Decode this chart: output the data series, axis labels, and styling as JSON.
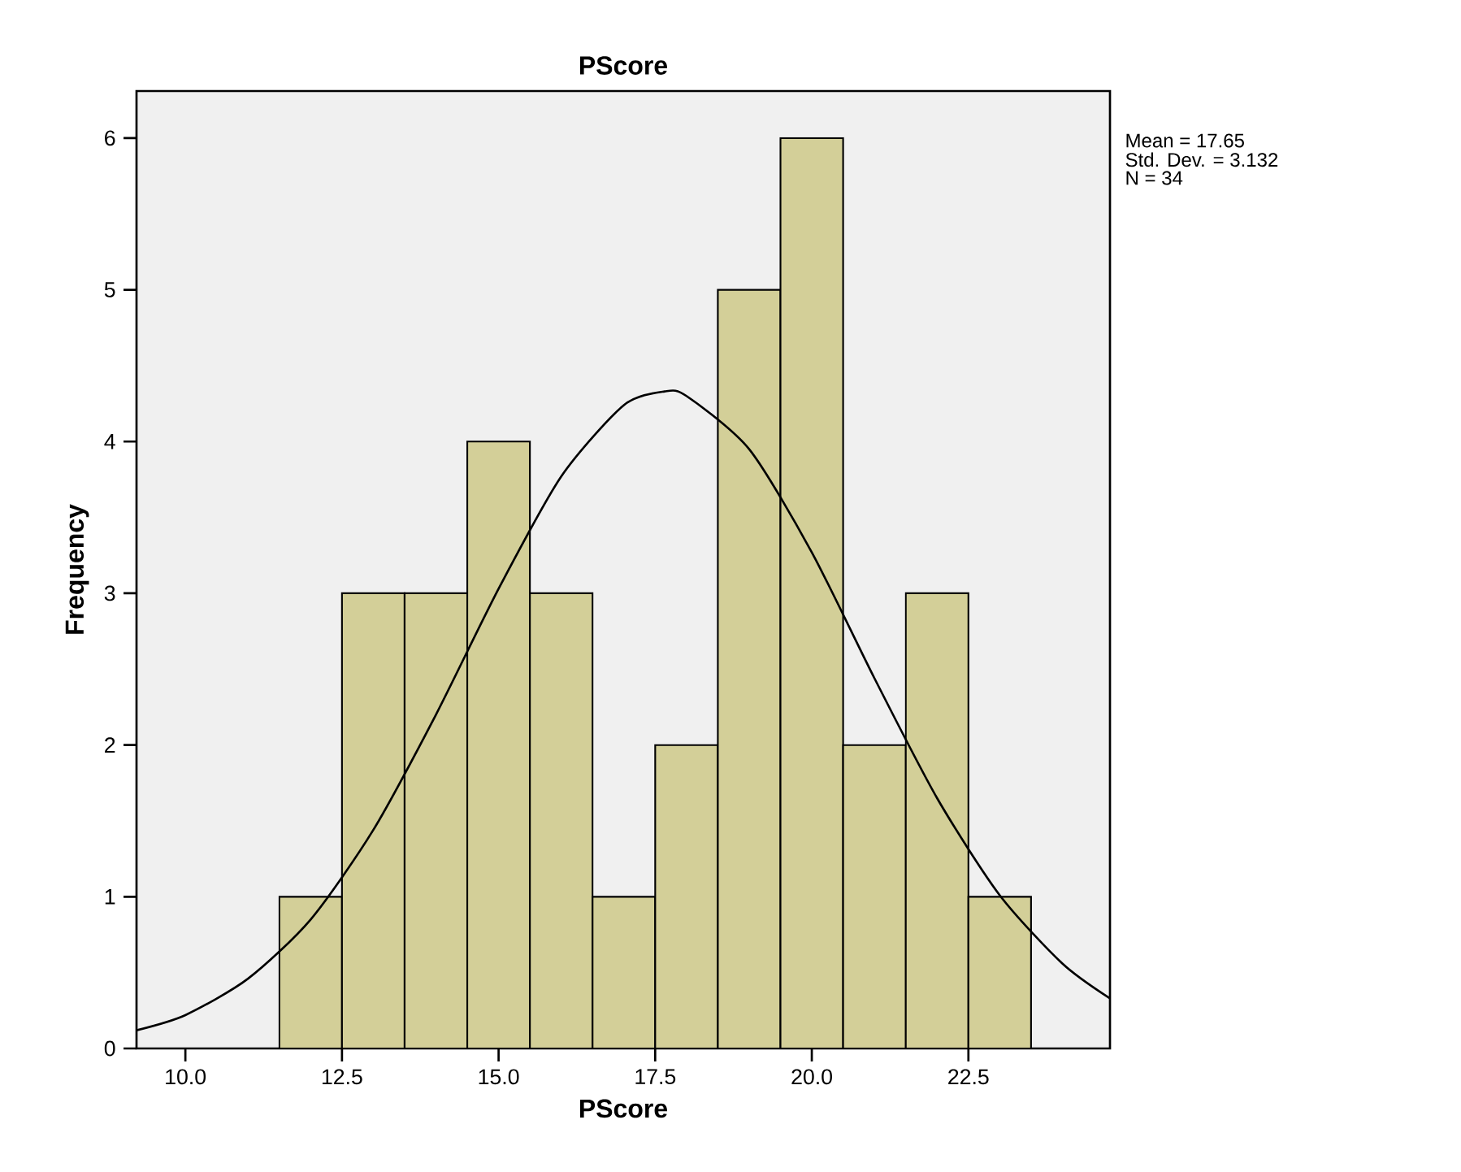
{
  "chart_data": {
    "type": "histogram",
    "title": "PScore",
    "xlabel": "PScore",
    "ylabel": "Frequency",
    "bins": [
      11.5,
      12.5,
      13.5,
      14.5,
      15.5,
      16.5,
      17.5,
      18.5,
      19.5,
      20.5,
      21.5,
      22.5,
      23.5
    ],
    "values": [
      1,
      3,
      3,
      4,
      3,
      1,
      2,
      5,
      6,
      2,
      3,
      1
    ],
    "color": "#d3cf98",
    "series": [
      {
        "type": "line",
        "color": "#000000",
        "x": [
          9.22,
          10,
          11,
          12,
          13,
          14,
          15,
          16,
          17,
          17.65,
          18,
          19,
          20,
          21,
          22,
          23,
          24,
          24.76
        ],
        "values": [
          0.12,
          0.22,
          0.46,
          0.85,
          1.44,
          2.2,
          3.03,
          3.77,
          4.24,
          4.33,
          4.3,
          3.95,
          3.27,
          2.44,
          1.65,
          1.01,
          0.56,
          0.33
        ]
      }
    ],
    "xlim": [
      9.22,
      24.76
    ],
    "ylim": [
      0,
      6.31
    ],
    "xticks": [
      {
        "value": 10,
        "label": "10.0"
      },
      {
        "value": 12.5,
        "label": "12.5"
      },
      {
        "value": 15,
        "label": "15.0"
      },
      {
        "value": 17.5,
        "label": "17.5"
      },
      {
        "value": 20,
        "label": "20.0"
      },
      {
        "value": 22.5,
        "label": "22.5"
      }
    ],
    "yticks": [
      0,
      1,
      2,
      3,
      4,
      5,
      6
    ],
    "annotations": [
      "Mean = 17.65",
      "Std. Dev. = 3.132",
      "N = 34"
    ]
  }
}
